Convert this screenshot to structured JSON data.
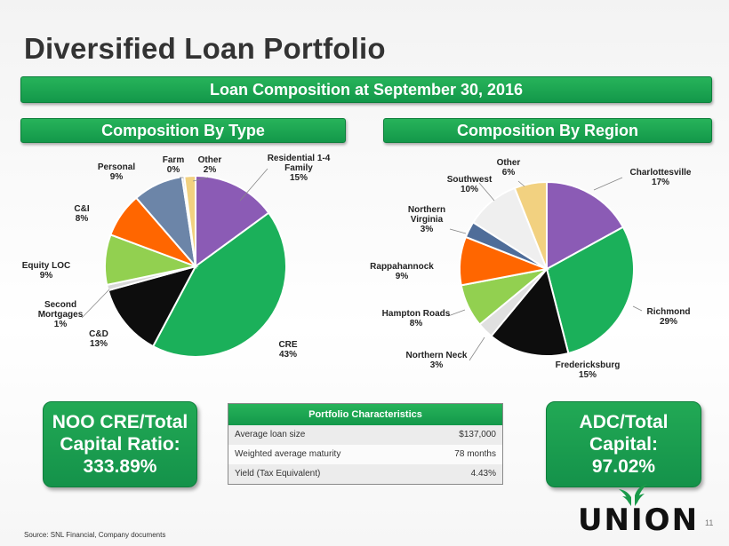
{
  "title": "Diversified Loan Portfolio",
  "banners": {
    "main": "Loan Composition at September 30, 2016",
    "by_type": "Composition By Type",
    "by_region": "Composition By Region"
  },
  "chart_data": [
    {
      "type": "pie",
      "slices": [
        {
          "label": [
            "Residential 1-4",
            "Family",
            "15%"
          ],
          "value": 15,
          "color": "#8b5bb5"
        },
        {
          "label": [
            "CRE",
            "43%"
          ],
          "value": 43,
          "color": "#1bb05a"
        },
        {
          "label": [
            "C&D",
            "13%"
          ],
          "value": 13,
          "color": "#0d0d0d"
        },
        {
          "label": [
            "Second",
            "Mortgages",
            "1%"
          ],
          "value": 1,
          "color": "#d9d9d9"
        },
        {
          "label": [
            "Equity LOC",
            "9%"
          ],
          "value": 9,
          "color": "#92d050"
        },
        {
          "label": [
            "C&I",
            "8%"
          ],
          "value": 8,
          "color": "#ff6600"
        },
        {
          "label": [
            "Personal",
            "9%"
          ],
          "value": 9,
          "color": "#6c85a8"
        },
        {
          "label": [
            "Farm",
            "0%"
          ],
          "value": 0.4,
          "color": "#c8c8c8"
        },
        {
          "label": [
            "Other",
            "2%"
          ],
          "value": 2,
          "color": "#f2d180"
        }
      ]
    },
    {
      "type": "pie",
      "slices": [
        {
          "label": [
            "Charlottesville",
            "17%"
          ],
          "value": 17,
          "color": "#8b5bb5"
        },
        {
          "label": [
            "Richmond",
            "29%"
          ],
          "value": 29,
          "color": "#1bb05a"
        },
        {
          "label": [
            "Fredericksburg",
            "15%"
          ],
          "value": 15,
          "color": "#0d0d0d"
        },
        {
          "label": [
            "Northern Neck",
            "3%"
          ],
          "value": 3,
          "color": "#e0e0e0"
        },
        {
          "label": [
            "Hampton Roads",
            "8%"
          ],
          "value": 8,
          "color": "#92d050"
        },
        {
          "label": [
            "Rappahannock",
            "9%"
          ],
          "value": 9,
          "color": "#ff6600"
        },
        {
          "label": [
            "Northern",
            "Virginia",
            "3%"
          ],
          "value": 3,
          "color": "#4f6d99"
        },
        {
          "label": [
            "Southwest",
            "10%"
          ],
          "value": 10,
          "color": "#efefef"
        },
        {
          "label": [
            "Other",
            "6%"
          ],
          "value": 6,
          "color": "#f2d180"
        }
      ]
    }
  ],
  "kpis": {
    "noo": [
      "NOO CRE/Total",
      "Capital Ratio:",
      "333.89%"
    ],
    "adc": [
      "ADC/Total",
      "Capital:",
      "97.02%"
    ]
  },
  "table": {
    "header": "Portfolio Characteristics",
    "rows": [
      {
        "label": "Average loan size",
        "value": "$137,000"
      },
      {
        "label": "Weighted average maturity",
        "value": "78 months"
      },
      {
        "label": "Yield (Tax Equivalent)",
        "value": "4.43%"
      }
    ]
  },
  "footer": {
    "source": "Source: SNL Financial, Company documents",
    "page": "11"
  },
  "logo": {
    "text": "UNION",
    "color": "#1a9a4a"
  }
}
